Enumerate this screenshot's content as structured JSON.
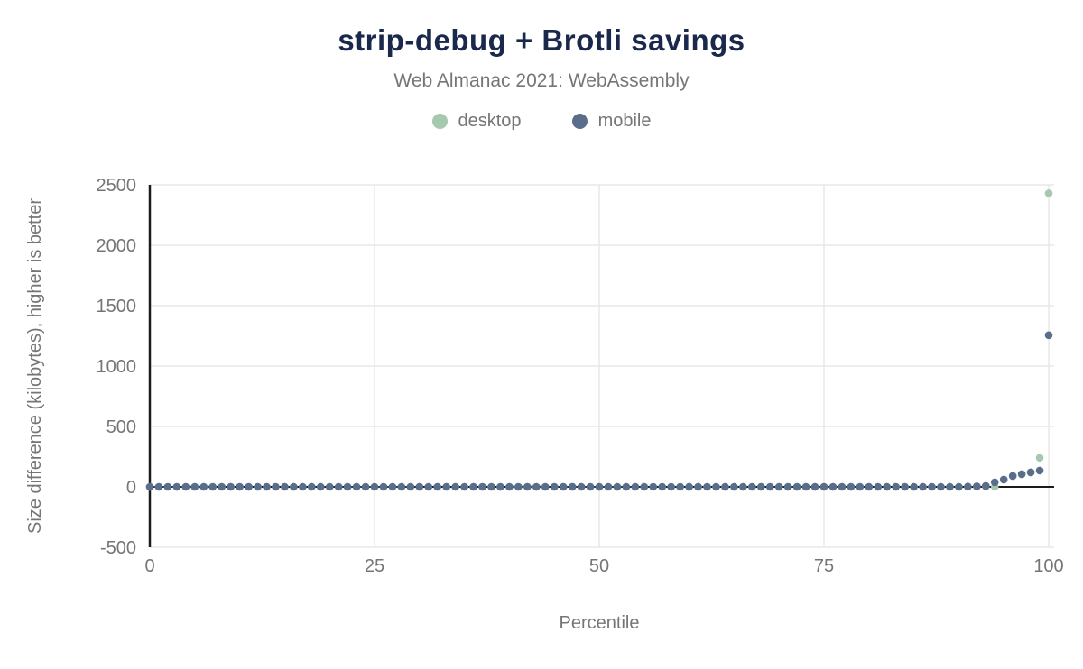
{
  "title": "strip-debug + Brotli savings",
  "subtitle": "Web Almanac 2021: WebAssembly",
  "colors": {
    "title": "#19284b",
    "text": "#757575",
    "grid": "#e8e8e8",
    "axis": "#1c1c1c",
    "background": "#ffffff",
    "desktop": "#a6c8ae",
    "mobile": "#5a6e8c"
  },
  "chart_data": {
    "type": "scatter",
    "title": "strip-debug + Brotli savings",
    "subtitle": "Web Almanac 2021: WebAssembly",
    "xlabel": "Percentile",
    "ylabel": "Size difference (kilobytes), higher is better",
    "xlim": [
      0,
      100
    ],
    "ylim": [
      -500,
      2500
    ],
    "xticks": [
      0,
      25,
      50,
      75,
      100
    ],
    "yticks": [
      2500,
      2000,
      1500,
      1000,
      500,
      0,
      -500
    ],
    "grid": true,
    "legend_position": "top",
    "marker_radius": 4.3,
    "x": [
      0,
      1,
      2,
      3,
      4,
      5,
      6,
      7,
      8,
      9,
      10,
      11,
      12,
      13,
      14,
      15,
      16,
      17,
      18,
      19,
      20,
      21,
      22,
      23,
      24,
      25,
      26,
      27,
      28,
      29,
      30,
      31,
      32,
      33,
      34,
      35,
      36,
      37,
      38,
      39,
      40,
      41,
      42,
      43,
      44,
      45,
      46,
      47,
      48,
      49,
      50,
      51,
      52,
      53,
      54,
      55,
      56,
      57,
      58,
      59,
      60,
      61,
      62,
      63,
      64,
      65,
      66,
      67,
      68,
      69,
      70,
      71,
      72,
      73,
      74,
      75,
      76,
      77,
      78,
      79,
      80,
      81,
      82,
      83,
      84,
      85,
      86,
      87,
      88,
      89,
      90,
      91,
      92,
      93,
      94,
      95,
      96,
      97,
      98,
      99,
      100
    ],
    "series": [
      {
        "name": "desktop",
        "color": "#a6c8ae",
        "values": [
          0,
          0,
          0,
          0,
          0,
          0,
          0,
          0,
          0,
          0,
          0,
          0,
          0,
          0,
          0,
          0,
          0,
          0,
          0,
          0,
          0,
          0,
          0,
          0,
          0,
          0,
          0,
          0,
          0,
          0,
          0,
          0,
          0,
          0,
          0,
          0,
          0,
          0,
          0,
          0,
          0,
          0,
          0,
          0,
          0,
          0,
          0,
          0,
          0,
          0,
          0,
          0,
          0,
          0,
          0,
          0,
          0,
          0,
          0,
          0,
          0,
          0,
          0,
          0,
          0,
          0,
          0,
          0,
          0,
          0,
          0,
          0,
          0,
          0,
          0,
          0,
          0,
          0,
          0,
          0,
          0,
          0,
          0,
          0,
          0,
          0,
          0,
          0,
          0,
          0,
          0,
          0,
          0,
          0,
          0,
          60,
          90,
          105,
          120,
          240,
          2430
        ]
      },
      {
        "name": "mobile",
        "color": "#5a6e8c",
        "values": [
          0,
          0,
          0,
          0,
          0,
          0,
          0,
          0,
          0,
          0,
          0,
          0,
          0,
          0,
          0,
          0,
          0,
          0,
          0,
          0,
          0,
          0,
          0,
          0,
          0,
          0,
          0,
          0,
          0,
          0,
          0,
          0,
          0,
          0,
          0,
          0,
          0,
          0,
          0,
          0,
          0,
          0,
          0,
          0,
          0,
          0,
          0,
          0,
          0,
          0,
          0,
          0,
          0,
          0,
          0,
          0,
          0,
          0,
          0,
          0,
          0,
          0,
          0,
          0,
          0,
          0,
          0,
          0,
          0,
          0,
          0,
          0,
          0,
          0,
          0,
          0,
          0,
          0,
          0,
          0,
          0,
          0,
          0,
          0,
          0,
          0,
          0,
          0,
          0,
          0,
          0,
          2,
          4,
          8,
          38,
          60,
          90,
          105,
          120,
          135,
          1255
        ]
      }
    ]
  }
}
